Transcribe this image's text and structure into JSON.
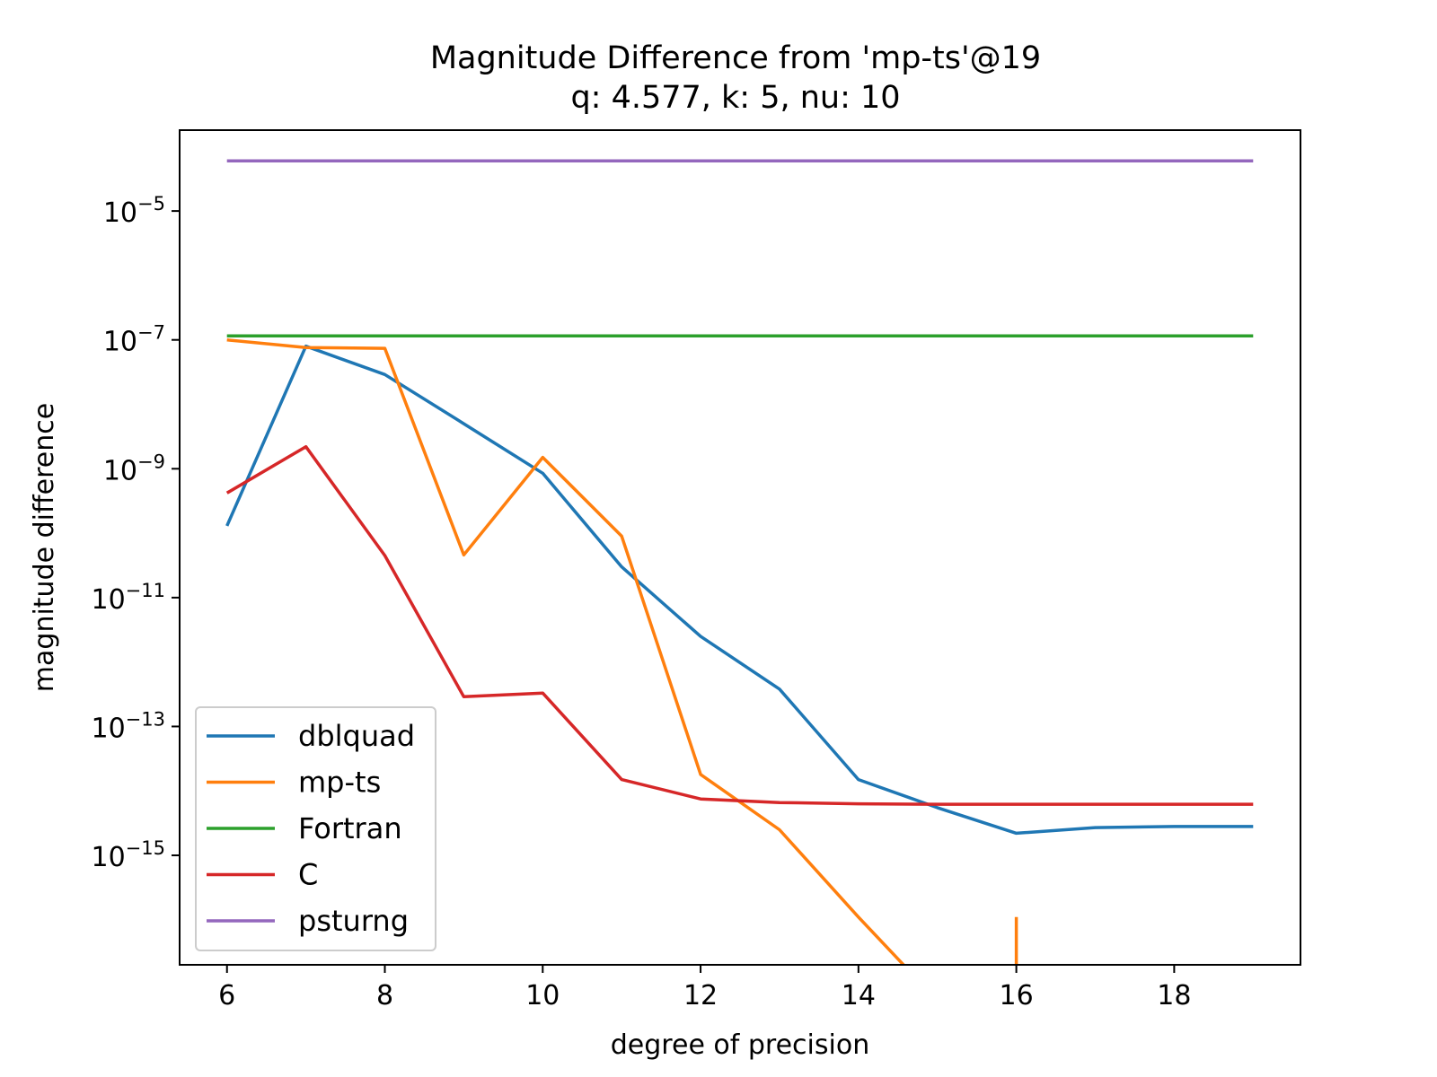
{
  "chart_data": {
    "type": "line",
    "title": "Magnitude Difference from 'mp-ts'@19",
    "subtitle": "q: 4.577, k: 5, nu: 10",
    "xlabel": "degree of precision",
    "ylabel": "magnitude difference",
    "xlim": [
      5.4,
      19.6
    ],
    "ylim": [
      2e-17,
      0.00018
    ],
    "yscale": "log",
    "xticks": [
      6,
      8,
      10,
      12,
      14,
      16,
      18
    ],
    "yticks": [
      {
        "value": 1e-05,
        "base": "10",
        "exp": "−5"
      },
      {
        "value": 1e-07,
        "base": "10",
        "exp": "−7"
      },
      {
        "value": 1e-09,
        "base": "10",
        "exp": "−9"
      },
      {
        "value": 1e-11,
        "base": "10",
        "exp": "−11"
      },
      {
        "value": 1e-13,
        "base": "10",
        "exp": "−13"
      },
      {
        "value": 1e-15,
        "base": "10",
        "exp": "−15"
      }
    ],
    "grid": false,
    "legend_position": "lower-left",
    "x": [
      6,
      7,
      8,
      9,
      10,
      11,
      12,
      13,
      14,
      15,
      16,
      17,
      18,
      19
    ],
    "series": [
      {
        "name": "dblquad",
        "color": "#1f77b4",
        "values": [
          1.3e-10,
          8e-08,
          2.9e-08,
          5e-09,
          8.5e-10,
          3e-11,
          2.5e-12,
          3.8e-13,
          1.5e-14,
          5.5e-15,
          2.2e-15,
          2.7e-15,
          2.8e-15,
          2.8e-15
        ]
      },
      {
        "name": "mp-ts",
        "color": "#ff7f0e",
        "values": [
          1e-07,
          7.6e-08,
          7.4e-08,
          4.6e-11,
          1.5e-09,
          9e-11,
          1.8e-14,
          2.5e-15,
          1.1e-16,
          0,
          0,
          null,
          null,
          null
        ]
      },
      {
        "name": "Fortran",
        "color": "#2ca02c",
        "values": [
          1.15e-07,
          1.15e-07,
          1.15e-07,
          1.15e-07,
          1.15e-07,
          1.15e-07,
          1.15e-07,
          1.15e-07,
          1.15e-07,
          1.15e-07,
          1.15e-07,
          1.15e-07,
          1.15e-07,
          1.15e-07
        ]
      },
      {
        "name": "C",
        "color": "#d62728",
        "values": [
          4.2e-10,
          2.2e-09,
          4.5e-11,
          2.9e-13,
          3.3e-13,
          1.5e-14,
          7.5e-15,
          6.6e-15,
          6.3e-15,
          6.2e-15,
          6.2e-15,
          6.2e-15,
          6.2e-15,
          6.2e-15
        ]
      },
      {
        "name": "psturng",
        "color": "#9467bd",
        "values": [
          6e-05,
          6e-05,
          6e-05,
          6e-05,
          6e-05,
          6e-05,
          6e-05,
          6e-05,
          6e-05,
          6e-05,
          6e-05,
          6e-05,
          6e-05,
          6e-05
        ]
      }
    ]
  }
}
